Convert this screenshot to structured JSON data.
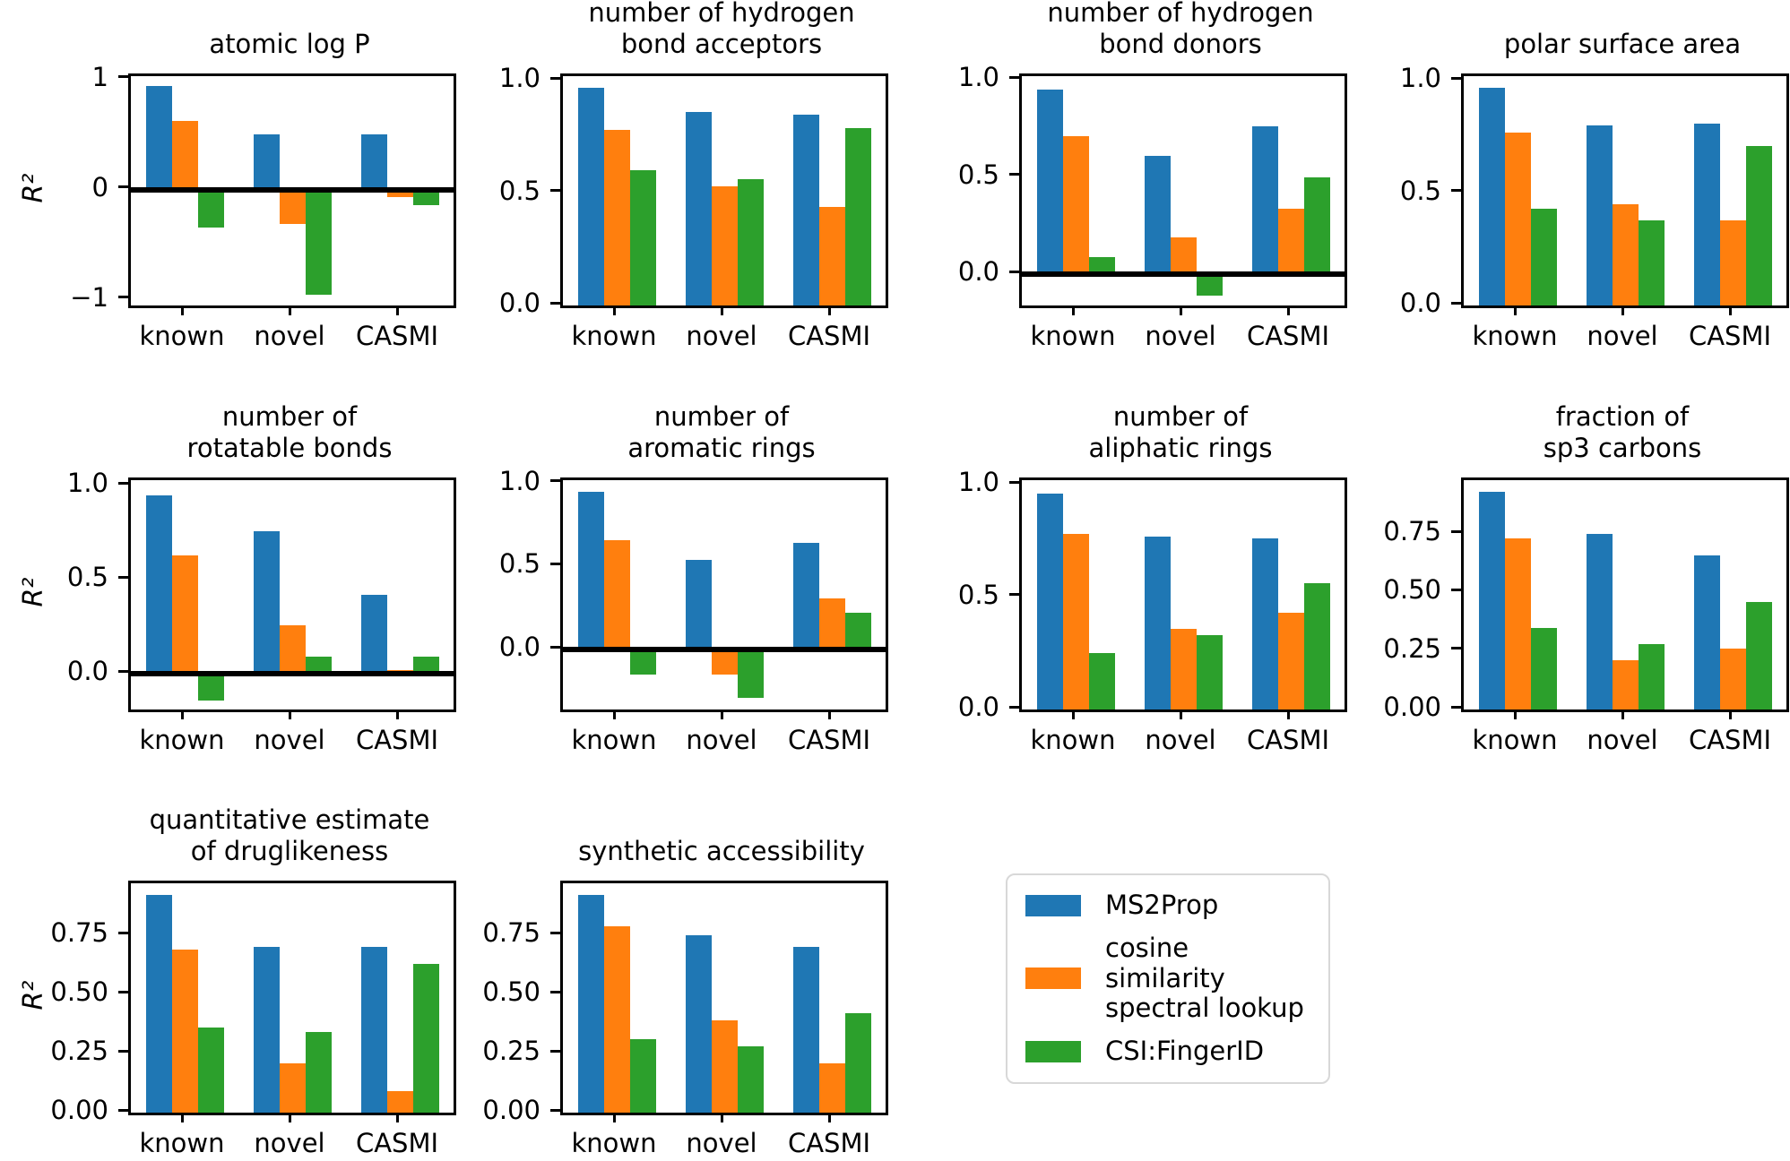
{
  "figure": {
    "ylabel": "R²",
    "categories": [
      "known",
      "novel",
      "CASMI"
    ],
    "series": [
      {
        "name": "MS2Prop",
        "color": "#1f77b4"
      },
      {
        "name": "cosine similarity spectral lookup",
        "color": "#ff7f0e"
      },
      {
        "name": "CSI:FingerID",
        "color": "#2ca02c"
      }
    ]
  },
  "legend": {
    "items": [
      {
        "label": "MS2Prop"
      },
      {
        "label": "cosine similarity\nspectral lookup"
      },
      {
        "label": "CSI:FingerID"
      }
    ]
  },
  "chart_data": [
    {
      "id": "atomic-logp",
      "type": "bar",
      "title": "atomic log P",
      "title_lines": [
        "atomic log P"
      ],
      "categories": [
        "known",
        "novel",
        "CASMI"
      ],
      "series": [
        {
          "name": "MS2Prop",
          "values": [
            0.94,
            0.5,
            0.5
          ]
        },
        {
          "name": "cosine similarity spectral lookup",
          "values": [
            0.62,
            -0.31,
            -0.07
          ]
        },
        {
          "name": "CSI:FingerID",
          "values": [
            -0.34,
            -0.95,
            -0.14
          ]
        }
      ],
      "ylabel": "R²",
      "ylim": [
        -1.05,
        1.03
      ],
      "yticks": [
        {
          "label": "1",
          "value": 1
        },
        {
          "label": "0",
          "value": 0
        },
        {
          "label": "−1",
          "value": -1
        }
      ],
      "zero_line": true
    },
    {
      "id": "hydrogen-bond-acceptors",
      "type": "bar",
      "title": "number of hydrogen bond acceptors",
      "title_lines": [
        "number of hydrogen",
        "bond acceptors"
      ],
      "categories": [
        "known",
        "novel",
        "CASMI"
      ],
      "series": [
        {
          "name": "MS2Prop",
          "values": [
            0.97,
            0.86,
            0.85
          ]
        },
        {
          "name": "cosine similarity spectral lookup",
          "values": [
            0.78,
            0.53,
            0.44
          ]
        },
        {
          "name": "CSI:FingerID",
          "values": [
            0.6,
            0.56,
            0.79
          ]
        }
      ],
      "ylim": [
        0,
        1.02
      ],
      "yticks": [
        {
          "label": "1.0",
          "value": 1.0
        },
        {
          "label": "0.5",
          "value": 0.5
        },
        {
          "label": "0.0",
          "value": 0.0
        }
      ],
      "zero_line": false
    },
    {
      "id": "hydrogen-bond-donors",
      "type": "bar",
      "title": "number of hydrogen bond donors",
      "title_lines": [
        "number of hydrogen",
        "bond donors"
      ],
      "categories": [
        "known",
        "novel",
        "CASMI"
      ],
      "series": [
        {
          "name": "MS2Prop",
          "values": [
            0.95,
            0.61,
            0.76
          ]
        },
        {
          "name": "cosine similarity spectral lookup",
          "values": [
            0.71,
            0.19,
            0.34
          ]
        },
        {
          "name": "CSI:FingerID",
          "values": [
            0.09,
            -0.11,
            0.5
          ]
        }
      ],
      "ylim": [
        -0.16,
        1.02
      ],
      "yticks": [
        {
          "label": "1.0",
          "value": 1.0
        },
        {
          "label": "0.5",
          "value": 0.5
        },
        {
          "label": "0.0",
          "value": 0.0
        }
      ],
      "zero_line": true
    },
    {
      "id": "polar-surface-area",
      "type": "bar",
      "title": "polar surface area",
      "title_lines": [
        "polar surface area"
      ],
      "categories": [
        "known",
        "novel",
        "CASMI"
      ],
      "series": [
        {
          "name": "MS2Prop",
          "values": [
            0.97,
            0.8,
            0.81
          ]
        },
        {
          "name": "cosine similarity spectral lookup",
          "values": [
            0.77,
            0.45,
            0.38
          ]
        },
        {
          "name": "CSI:FingerID",
          "values": [
            0.43,
            0.38,
            0.71
          ]
        }
      ],
      "ylim": [
        0,
        1.02
      ],
      "yticks": [
        {
          "label": "1.0",
          "value": 1.0
        },
        {
          "label": "0.5",
          "value": 0.5
        },
        {
          "label": "0.0",
          "value": 0.0
        }
      ],
      "zero_line": false
    },
    {
      "id": "rotatable-bonds",
      "type": "bar",
      "title": "number of rotatable bonds",
      "title_lines": [
        "number of",
        "rotatable bonds"
      ],
      "categories": [
        "known",
        "novel",
        "CASMI"
      ],
      "series": [
        {
          "name": "MS2Prop",
          "values": [
            0.95,
            0.76,
            0.42
          ]
        },
        {
          "name": "cosine similarity spectral lookup",
          "values": [
            0.63,
            0.26,
            0.02
          ]
        },
        {
          "name": "CSI:FingerID",
          "values": [
            -0.14,
            0.09,
            0.09
          ]
        }
      ],
      "ylabel": "R²",
      "ylim": [
        -0.19,
        1.03
      ],
      "yticks": [
        {
          "label": "1.0",
          "value": 1.0
        },
        {
          "label": "0.5",
          "value": 0.5
        },
        {
          "label": "0.0",
          "value": 0.0
        }
      ],
      "zero_line": true
    },
    {
      "id": "aromatic-rings",
      "type": "bar",
      "title": "number of aromatic rings",
      "title_lines": [
        "number of",
        "aromatic rings"
      ],
      "categories": [
        "known",
        "novel",
        "CASMI"
      ],
      "series": [
        {
          "name": "MS2Prop",
          "values": [
            0.95,
            0.54,
            0.64
          ]
        },
        {
          "name": "cosine similarity spectral lookup",
          "values": [
            0.66,
            -0.15,
            0.31
          ]
        },
        {
          "name": "CSI:FingerID",
          "values": [
            -0.15,
            -0.29,
            0.22
          ]
        }
      ],
      "ylim": [
        -0.36,
        1.02
      ],
      "yticks": [
        {
          "label": "1.0",
          "value": 1.0
        },
        {
          "label": "0.5",
          "value": 0.5
        },
        {
          "label": "0.0",
          "value": 0.0
        }
      ],
      "zero_line": true
    },
    {
      "id": "aliphatic-rings",
      "type": "bar",
      "title": "number of aliphatic rings",
      "title_lines": [
        "number of",
        "aliphatic rings"
      ],
      "categories": [
        "known",
        "novel",
        "CASMI"
      ],
      "series": [
        {
          "name": "MS2Prop",
          "values": [
            0.96,
            0.77,
            0.76
          ]
        },
        {
          "name": "cosine similarity spectral lookup",
          "values": [
            0.78,
            0.36,
            0.43
          ]
        },
        {
          "name": "CSI:FingerID",
          "values": [
            0.25,
            0.33,
            0.56
          ]
        }
      ],
      "ylim": [
        0,
        1.02
      ],
      "yticks": [
        {
          "label": "1.0",
          "value": 1.0
        },
        {
          "label": "0.5",
          "value": 0.5
        },
        {
          "label": "0.0",
          "value": 0.0
        }
      ],
      "zero_line": false
    },
    {
      "id": "sp3-carbons",
      "type": "bar",
      "title": "fraction of sp3 carbons",
      "title_lines": [
        "fraction of",
        "sp3 carbons"
      ],
      "categories": [
        "known",
        "novel",
        "CASMI"
      ],
      "series": [
        {
          "name": "MS2Prop",
          "values": [
            0.93,
            0.75,
            0.66
          ]
        },
        {
          "name": "cosine similarity spectral lookup",
          "values": [
            0.73,
            0.21,
            0.26
          ]
        },
        {
          "name": "CSI:FingerID",
          "values": [
            0.35,
            0.28,
            0.46
          ]
        }
      ],
      "ylim": [
        0,
        0.98
      ],
      "yticks": [
        {
          "label": "0.75",
          "value": 0.75
        },
        {
          "label": "0.50",
          "value": 0.5
        },
        {
          "label": "0.25",
          "value": 0.25
        },
        {
          "label": "0.00",
          "value": 0.0
        }
      ],
      "zero_line": false
    },
    {
      "id": "druglikeness",
      "type": "bar",
      "title": "quantitative estimate of druglikeness",
      "title_lines": [
        "quantitative estimate",
        "of druglikeness"
      ],
      "categories": [
        "known",
        "novel",
        "CASMI"
      ],
      "series": [
        {
          "name": "MS2Prop",
          "values": [
            0.92,
            0.7,
            0.7
          ]
        },
        {
          "name": "cosine similarity spectral lookup",
          "values": [
            0.69,
            0.21,
            0.09
          ]
        },
        {
          "name": "CSI:FingerID",
          "values": [
            0.36,
            0.34,
            0.63
          ]
        }
      ],
      "ylabel": "R²",
      "ylim": [
        0,
        0.97
      ],
      "yticks": [
        {
          "label": "0.75",
          "value": 0.75
        },
        {
          "label": "0.50",
          "value": 0.5
        },
        {
          "label": "0.25",
          "value": 0.25
        },
        {
          "label": "0.00",
          "value": 0.0
        }
      ],
      "zero_line": false
    },
    {
      "id": "synthetic-accessibility",
      "type": "bar",
      "title": "synthetic accessibility",
      "title_lines": [
        "synthetic accessibility"
      ],
      "categories": [
        "known",
        "novel",
        "CASMI"
      ],
      "series": [
        {
          "name": "MS2Prop",
          "values": [
            0.92,
            0.75,
            0.7
          ]
        },
        {
          "name": "cosine similarity spectral lookup",
          "values": [
            0.79,
            0.39,
            0.21
          ]
        },
        {
          "name": "CSI:FingerID",
          "values": [
            0.31,
            0.28,
            0.42
          ]
        }
      ],
      "ylim": [
        0,
        0.97
      ],
      "yticks": [
        {
          "label": "0.75",
          "value": 0.75
        },
        {
          "label": "0.50",
          "value": 0.5
        },
        {
          "label": "0.25",
          "value": 0.25
        },
        {
          "label": "0.00",
          "value": 0.0
        }
      ],
      "zero_line": false
    }
  ]
}
